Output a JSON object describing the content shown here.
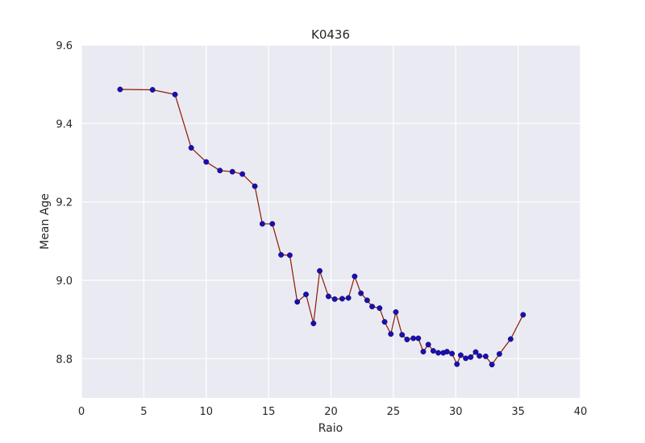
{
  "chart_data": {
    "type": "line",
    "title": "K0436",
    "xlabel": "Raio",
    "ylabel": "Mean Age",
    "xlim": [
      0,
      40
    ],
    "ylim": [
      8.7,
      9.6
    ],
    "xticks": [
      0,
      5,
      10,
      15,
      20,
      25,
      30,
      35,
      40
    ],
    "yticks": [
      8.8,
      9.0,
      9.2,
      9.4,
      9.6
    ],
    "ytick_labels": [
      "8.8",
      "9.0",
      "9.2",
      "9.4",
      "9.6"
    ],
    "grid": true,
    "line_color": "#8b1a00",
    "marker_color": "#1a0fb0",
    "background_color": "#eaeaf2",
    "series": [
      {
        "x": [
          3.1,
          5.7,
          7.5,
          8.8,
          10.0,
          11.1,
          12.1,
          12.9,
          13.9,
          14.5,
          15.3,
          16.0,
          16.7,
          17.3,
          18.0,
          18.6,
          19.1,
          19.8,
          20.3,
          20.9,
          21.4,
          21.9,
          22.4,
          22.9,
          23.3,
          23.9,
          24.3,
          24.8,
          25.2,
          25.7,
          26.1,
          26.6,
          27.0,
          27.4,
          27.8,
          28.2,
          28.6,
          29.0,
          29.3,
          29.7,
          30.1,
          30.4,
          30.8,
          31.2,
          31.6,
          31.9,
          32.4,
          32.9,
          33.5,
          34.4,
          35.4
        ],
        "y": [
          9.487,
          9.486,
          9.474,
          9.338,
          9.302,
          9.28,
          9.277,
          9.271,
          9.24,
          9.144,
          9.144,
          9.065,
          9.064,
          8.945,
          8.964,
          8.89,
          9.024,
          8.959,
          8.952,
          8.953,
          8.955,
          9.01,
          8.967,
          8.949,
          8.933,
          8.929,
          8.894,
          8.863,
          8.919,
          8.861,
          8.849,
          8.852,
          8.852,
          8.818,
          8.836,
          8.82,
          8.815,
          8.815,
          8.818,
          8.813,
          8.786,
          8.809,
          8.801,
          8.804,
          8.817,
          8.807,
          8.806,
          8.785,
          8.812,
          8.85,
          8.912
        ]
      }
    ]
  }
}
